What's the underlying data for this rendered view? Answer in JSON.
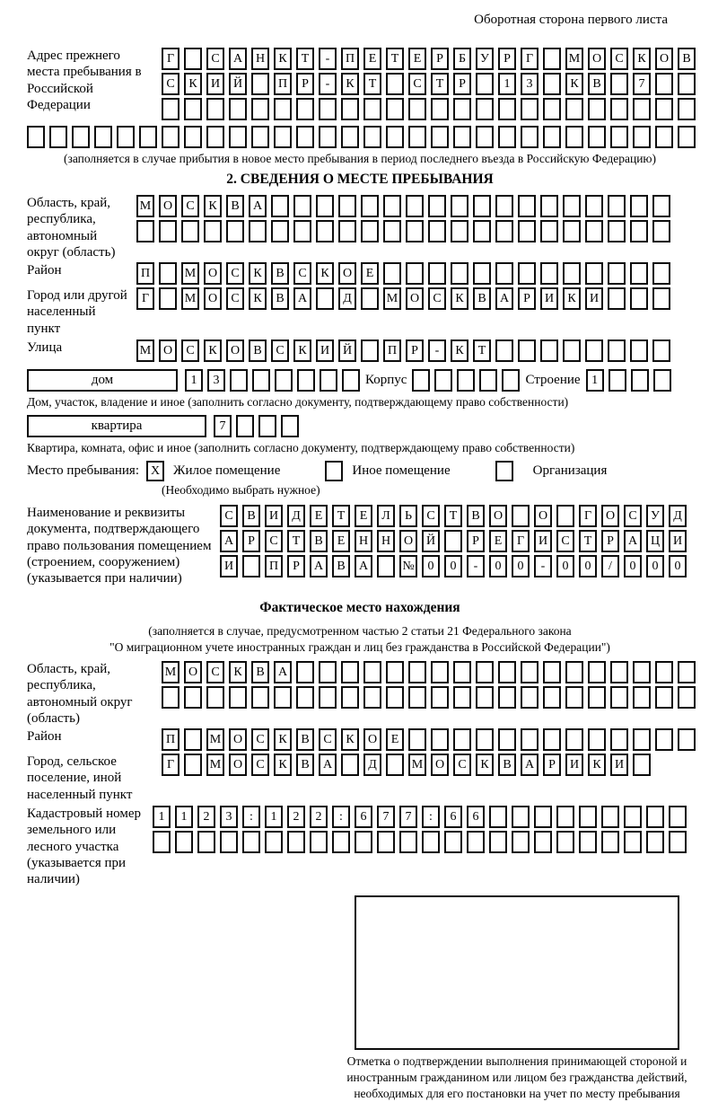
{
  "page": {
    "header_note": "Оборотная сторона первого листа"
  },
  "prev_address": {
    "label": "Адрес прежнего места пребывания в Российской Федерации",
    "rows": [
      {
        "text": "Г САНКТ-ПЕТЕРБУРГ МОСКОВ",
        "len": 24
      },
      {
        "text": "СКИЙ ПР-КТ СТР 13 КВ 7",
        "len": 24
      },
      {
        "text": "",
        "len": 24
      },
      {
        "text": "",
        "len": 30
      }
    ],
    "caption": "(заполняется в случае прибытия в новое место пребывания в период последнего въезда в Российскую Федерацию)"
  },
  "section2": {
    "title": "2. СВЕДЕНИЯ О МЕСТЕ ПРЕБЫВАНИЯ",
    "oblast": {
      "label": "Область, край, республика, автономный округ (область)",
      "rows": [
        {
          "text": "МОСКВА",
          "len": 24
        },
        {
          "text": "",
          "len": 24
        }
      ]
    },
    "rayon": {
      "label": "Район",
      "row": {
        "text": "П МОСКВСКОЕ",
        "len": 24
      }
    },
    "gorod": {
      "label": "Город или другой населенный пункт",
      "row": {
        "text": "Г МОСКВА Д МОСКВАРИКИ",
        "len": 24
      }
    },
    "ulitsa": {
      "label": "Улица",
      "row": {
        "text": "МОСКОВСКИЙ ПР-КТ",
        "len": 24
      }
    },
    "dom": {
      "box_label": "дом",
      "cells": {
        "text": "13",
        "len": 8
      },
      "korpus_label": "Корпус",
      "korpus_cells": {
        "text": "",
        "len": 5
      },
      "stroenie_label": "Строение",
      "stroenie_cells": {
        "text": "1",
        "len": 4
      },
      "caption": "Дом, участок, владение и иное (заполнить согласно документу, подтверждающему право собственности)"
    },
    "kvartira": {
      "box_label": "квартира",
      "cells": {
        "text": "7",
        "len": 4
      },
      "caption": "Квартира, комната, офис и иное (заполнить согласно документу, подтверждающему право собственности)"
    },
    "mesto": {
      "label": "Место пребывания:",
      "zhiloe_mark": "X",
      "zhiloe_label": "Жилое помещение",
      "inoe_mark": "",
      "inoe_label": "Иное помещение",
      "org_mark": "",
      "org_label": "Организация",
      "note": "(Необходимо выбрать нужное)"
    },
    "doc": {
      "label": "Наименование и реквизиты документа, подтверждающего право пользования помещением (строением, сооружением) (указывается при наличии)",
      "rows": [
        {
          "text": "СВИДЕТЕЛЬСТВО О ГОСУД",
          "len": 21
        },
        {
          "text": "АРСТВЕННОЙ РЕГИСТРАЦИ",
          "len": 21
        },
        {
          "text": "И ПРАВА №00-00-00/000",
          "len": 21
        }
      ]
    }
  },
  "fact": {
    "title": "Фактическое место нахождения",
    "caption_line1": "(заполняется в случае, предусмотренном частью 2 статьи 21 Федерального закона",
    "caption_line2": "\"О миграционном учете иностранных граждан и лиц без гражданства в Российской Федерации\")",
    "oblast": {
      "label": "Область, край, республика, автономный округ (область)",
      "rows": [
        {
          "text": "МОСКВА",
          "len": 24
        },
        {
          "text": "",
          "len": 24
        }
      ]
    },
    "rayon": {
      "label": "Район",
      "row": {
        "text": "П МОСКВСКОЕ",
        "len": 24
      }
    },
    "gorod": {
      "label": "Город, сельское поселение, иной населенный пункт",
      "row": {
        "text": "Г МОСКВА Д МОСКВАРИКИ",
        "len": 22
      }
    },
    "kadastr": {
      "label": "Кадастровый номер земельного или лесного участка (указывается при наличии)",
      "rows": [
        {
          "text": "1123:122:677:66",
          "len": 24
        },
        {
          "text": "",
          "len": 24
        }
      ]
    },
    "stamp_caption": "Отметка о подтверждении выполнения принимающей стороной и иностранным гражданином или лицом без гражданства действий, необходимых для его постановки на учет по месту пребывания"
  }
}
